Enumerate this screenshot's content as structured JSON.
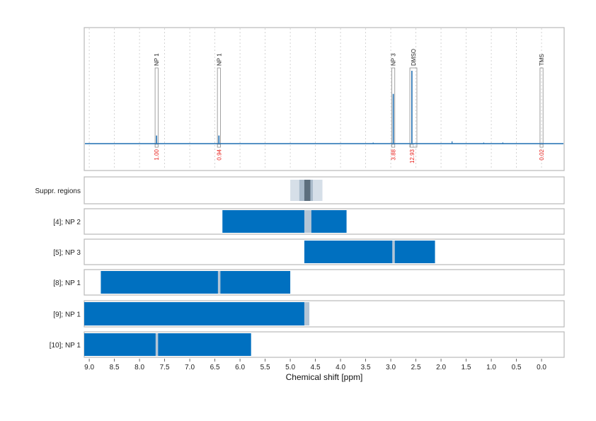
{
  "chart_data": {
    "type": "nmr-spectrum",
    "xlabel": "Chemical shift [ppm]",
    "xlim": [
      9.1,
      -0.45
    ],
    "xticks": [
      "9.0",
      "8.5",
      "8.0",
      "7.5",
      "7.0",
      "6.5",
      "6.0",
      "5.5",
      "5.0",
      "4.5",
      "4.0",
      "3.5",
      "3.0",
      "2.5",
      "2.0",
      "1.5",
      "1.0",
      "0.5",
      "0.0"
    ],
    "xtick_values": [
      9.0,
      8.5,
      8.0,
      7.5,
      7.0,
      6.5,
      6.0,
      5.5,
      5.0,
      4.5,
      4.0,
      3.5,
      3.0,
      2.5,
      2.0,
      1.5,
      1.0,
      0.5,
      0.0
    ],
    "grid": true,
    "colors": {
      "spectrum": "#1f6fb2",
      "bar": "#0070c0",
      "integral": "#e8201c",
      "highlight": "#b3c5d6",
      "suppr_light": "#d6dfe8",
      "suppr_mid": "#aabbcb",
      "suppr_dark": "#5c6e7d"
    },
    "peaks": [
      {
        "label": "NP 1",
        "ppm": 7.66,
        "height": 0.07,
        "integral": "1.00",
        "box_lo": 7.63,
        "box_hi": 7.69
      },
      {
        "label": "NP 1",
        "ppm": 6.42,
        "height": 0.07,
        "integral": "0.94",
        "box_lo": 6.39,
        "box_hi": 6.45
      },
      {
        "label": "NP 3",
        "ppm": 2.95,
        "height": 0.43,
        "integral": "3.88",
        "box_lo": 2.92,
        "box_hi": 2.98
      },
      {
        "label": "DMSO",
        "ppm": 2.58,
        "height": 0.63,
        "integral": "12.93",
        "box_lo": 2.48,
        "box_hi": 2.62
      },
      {
        "label": "TMS",
        "ppm": 0.0,
        "height": 0.0,
        "integral": "0.02",
        "box_lo": -0.03,
        "box_hi": 0.03
      }
    ],
    "minor_peaks": [
      {
        "ppm": 1.78,
        "height": 0.02
      },
      {
        "ppm": 0.77,
        "height": 0.01
      },
      {
        "ppm": 1.15,
        "height": 0.005
      },
      {
        "ppm": 3.35,
        "height": 0.004
      }
    ],
    "suppressed_regions": {
      "label": "Suppr. regions",
      "light": [
        5.0,
        4.36
      ],
      "mid": [
        4.82,
        4.55
      ],
      "dark": [
        4.72,
        4.6
      ]
    },
    "rows": [
      {
        "label": "[4]; NP 2",
        "ranges": [
          [
            6.35,
            3.88
          ]
        ],
        "highlight": [
          4.72,
          4.58
        ]
      },
      {
        "label": "[5]; NP 3",
        "ranges": [
          [
            4.72,
            2.12
          ]
        ],
        "highlight": [
          2.97,
          2.92
        ]
      },
      {
        "label": "[8]; NP 1",
        "ranges": [
          [
            8.77,
            5.0
          ]
        ],
        "highlight": [
          6.44,
          6.39
        ]
      },
      {
        "label": "[9]; NP 1",
        "ranges": [
          [
            9.1,
            4.72
          ]
        ],
        "highlight": [
          4.72,
          4.62
        ]
      },
      {
        "label": "[10]; NP 1",
        "ranges": [
          [
            9.1,
            5.78
          ]
        ],
        "highlight": [
          7.68,
          7.63
        ]
      }
    ]
  }
}
